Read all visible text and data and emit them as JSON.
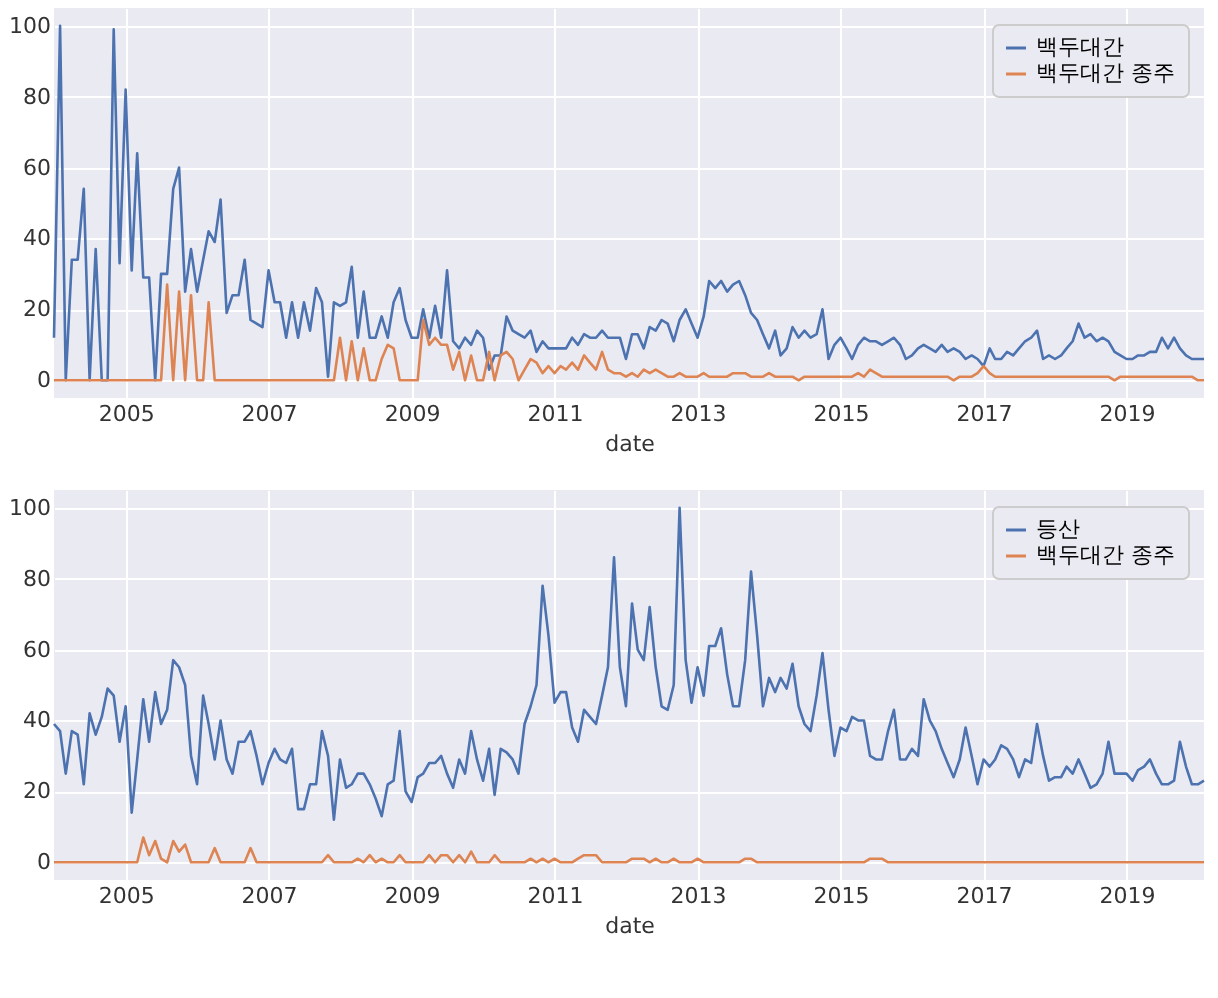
{
  "chart_data": [
    {
      "type": "line",
      "xlabel": "date",
      "legend": "top right",
      "grid": true,
      "xlim": [
        "2004-01",
        "2020-02"
      ],
      "ylim": [
        -5,
        105
      ],
      "xticks": [
        "2005",
        "2007",
        "2009",
        "2011",
        "2013",
        "2015",
        "2017",
        "2019"
      ],
      "yticks": [
        0,
        20,
        40,
        60,
        80,
        100
      ],
      "x": [
        "2004-01",
        "2004-02",
        "2004-03",
        "2004-04",
        "2004-05",
        "2004-06",
        "2004-07",
        "2004-08",
        "2004-09",
        "2004-10",
        "2004-11",
        "2004-12",
        "2005-01",
        "2005-02",
        "2005-03",
        "2005-04",
        "2005-05",
        "2005-06",
        "2005-07",
        "2005-08",
        "2005-09",
        "2005-10",
        "2005-11",
        "2005-12",
        "2006-01",
        "2006-02",
        "2006-03",
        "2006-04",
        "2006-05",
        "2006-06",
        "2006-07",
        "2006-08",
        "2006-09",
        "2006-10",
        "2006-11",
        "2006-12",
        "2007-01",
        "2007-02",
        "2007-03",
        "2007-04",
        "2007-05",
        "2007-06",
        "2007-07",
        "2007-08",
        "2007-09",
        "2007-10",
        "2007-11",
        "2007-12",
        "2008-01",
        "2008-02",
        "2008-03",
        "2008-04",
        "2008-05",
        "2008-06",
        "2008-07",
        "2008-08",
        "2008-09",
        "2008-10",
        "2008-11",
        "2008-12",
        "2009-01",
        "2009-02",
        "2009-03",
        "2009-04",
        "2009-05",
        "2009-06",
        "2009-07",
        "2009-08",
        "2009-09",
        "2009-10",
        "2009-11",
        "2009-12",
        "2010-01",
        "2010-02",
        "2010-03",
        "2010-04",
        "2010-05",
        "2010-06",
        "2010-07",
        "2010-08",
        "2010-09",
        "2010-10",
        "2010-11",
        "2010-12",
        "2011-01",
        "2011-02",
        "2011-03",
        "2011-04",
        "2011-05",
        "2011-06",
        "2011-07",
        "2011-08",
        "2011-09",
        "2011-10",
        "2011-11",
        "2011-12",
        "2012-01",
        "2012-02",
        "2012-03",
        "2012-04",
        "2012-05",
        "2012-06",
        "2012-07",
        "2012-08",
        "2012-09",
        "2012-10",
        "2012-11",
        "2012-12",
        "2013-01",
        "2013-02",
        "2013-03",
        "2013-04",
        "2013-05",
        "2013-06",
        "2013-07",
        "2013-08",
        "2013-09",
        "2013-10",
        "2013-11",
        "2013-12",
        "2014-01",
        "2014-02",
        "2014-03",
        "2014-04",
        "2014-05",
        "2014-06",
        "2014-07",
        "2014-08",
        "2014-09",
        "2014-10",
        "2014-11",
        "2014-12",
        "2015-01",
        "2015-02",
        "2015-03",
        "2015-04",
        "2015-05",
        "2015-06",
        "2015-07",
        "2015-08",
        "2015-09",
        "2015-10",
        "2015-11",
        "2015-12",
        "2016-01",
        "2016-02",
        "2016-03",
        "2016-04",
        "2016-05",
        "2016-06",
        "2016-07",
        "2016-08",
        "2016-09",
        "2016-10",
        "2016-11",
        "2016-12",
        "2017-01",
        "2017-02",
        "2017-03",
        "2017-04",
        "2017-05",
        "2017-06",
        "2017-07",
        "2017-08",
        "2017-09",
        "2017-10",
        "2017-11",
        "2017-12",
        "2018-01",
        "2018-02",
        "2018-03",
        "2018-04",
        "2018-05",
        "2018-06",
        "2018-07",
        "2018-08",
        "2018-09",
        "2018-10",
        "2018-11",
        "2018-12",
        "2019-01",
        "2019-02",
        "2019-03",
        "2019-04",
        "2019-05",
        "2019-06",
        "2019-07",
        "2019-08",
        "2019-09",
        "2019-10",
        "2019-11",
        "2019-12",
        "2020-01",
        "2020-02"
      ],
      "series": [
        {
          "name": "백두대간",
          "color": "#4c72b0",
          "values": [
            12,
            100,
            0,
            34,
            34,
            54,
            0,
            37,
            0,
            0,
            99,
            33,
            82,
            31,
            64,
            29,
            29,
            0,
            30,
            30,
            54,
            60,
            25,
            37,
            25,
            34,
            42,
            39,
            51,
            19,
            24,
            24,
            34,
            17,
            16,
            15,
            31,
            22,
            22,
            12,
            22,
            12,
            22,
            14,
            26,
            22,
            1,
            22,
            21,
            22,
            32,
            12,
            25,
            12,
            12,
            18,
            12,
            22,
            26,
            17,
            12,
            12,
            20,
            12,
            21,
            12,
            31,
            11,
            9,
            12,
            10,
            14,
            12,
            3,
            7,
            7,
            18,
            14,
            13,
            12,
            14,
            8,
            11,
            9,
            9,
            9,
            9,
            12,
            10,
            13,
            12,
            12,
            14,
            12,
            12,
            12,
            6,
            13,
            13,
            9,
            15,
            14,
            17,
            16,
            11,
            17,
            20,
            16,
            12,
            18,
            28,
            26,
            28,
            25,
            27,
            28,
            24,
            19,
            17,
            13,
            9,
            14,
            7,
            9,
            15,
            12,
            14,
            12,
            13,
            20,
            6,
            10,
            12,
            9,
            6,
            10,
            12,
            11,
            11,
            10,
            11,
            12,
            10,
            6,
            7,
            9,
            10,
            9,
            8,
            10,
            8,
            9,
            8,
            6,
            7,
            6,
            4,
            9,
            6,
            6,
            8,
            7,
            9,
            11,
            12,
            14,
            6,
            7,
            6,
            7,
            9,
            11,
            16,
            12,
            13,
            11,
            12,
            11,
            8,
            7,
            6,
            6,
            7,
            7,
            8,
            8,
            12,
            9,
            12,
            9,
            7,
            6,
            6,
            6
          ]
        },
        {
          "name": "백두대간 종주",
          "color": "#dd8452",
          "values": [
            0,
            0,
            0,
            0,
            0,
            0,
            0,
            0,
            0,
            0,
            0,
            0,
            0,
            0,
            0,
            0,
            0,
            0,
            0,
            27,
            0,
            25,
            0,
            24,
            0,
            0,
            22,
            0,
            0,
            0,
            0,
            0,
            0,
            0,
            0,
            0,
            0,
            0,
            0,
            0,
            0,
            0,
            0,
            0,
            0,
            0,
            0,
            0,
            12,
            0,
            11,
            0,
            9,
            0,
            0,
            6,
            10,
            9,
            0,
            0,
            0,
            0,
            17,
            10,
            12,
            10,
            10,
            3,
            8,
            0,
            7,
            0,
            0,
            8,
            0,
            7,
            8,
            6,
            0,
            3,
            6,
            5,
            2,
            4,
            2,
            4,
            3,
            5,
            3,
            7,
            5,
            3,
            8,
            3,
            2,
            2,
            1,
            2,
            1,
            3,
            2,
            3,
            2,
            1,
            1,
            2,
            1,
            1,
            1,
            2,
            1,
            1,
            1,
            1,
            2,
            2,
            2,
            1,
            1,
            1,
            2,
            1,
            1,
            1,
            1,
            0,
            1,
            1,
            1,
            1,
            1,
            1,
            1,
            1,
            1,
            2,
            1,
            3,
            2,
            1,
            1,
            1,
            1,
            1,
            1,
            1,
            1,
            1,
            1,
            1,
            1,
            0,
            1,
            1,
            1,
            2,
            4,
            2,
            1,
            1,
            1,
            1,
            1,
            1,
            1,
            1,
            1,
            1,
            1,
            1,
            1,
            1,
            1,
            1,
            1,
            1,
            1,
            1,
            0,
            1,
            1,
            1,
            1,
            1,
            1,
            1,
            1,
            1,
            1,
            1,
            1,
            1,
            0,
            0
          ]
        }
      ]
    },
    {
      "type": "line",
      "xlabel": "date",
      "legend": "top right",
      "grid": true,
      "xlim": [
        "2004-01",
        "2020-02"
      ],
      "ylim": [
        -5,
        105
      ],
      "xticks": [
        "2005",
        "2007",
        "2009",
        "2011",
        "2013",
        "2015",
        "2017",
        "2019"
      ],
      "yticks": [
        0,
        20,
        40,
        60,
        80,
        100
      ],
      "x": [
        "2004-01",
        "2004-02",
        "2004-03",
        "2004-04",
        "2004-05",
        "2004-06",
        "2004-07",
        "2004-08",
        "2004-09",
        "2004-10",
        "2004-11",
        "2004-12",
        "2005-01",
        "2005-02",
        "2005-03",
        "2005-04",
        "2005-05",
        "2005-06",
        "2005-07",
        "2005-08",
        "2005-09",
        "2005-10",
        "2005-11",
        "2005-12",
        "2006-01",
        "2006-02",
        "2006-03",
        "2006-04",
        "2006-05",
        "2006-06",
        "2006-07",
        "2006-08",
        "2006-09",
        "2006-10",
        "2006-11",
        "2006-12",
        "2007-01",
        "2007-02",
        "2007-03",
        "2007-04",
        "2007-05",
        "2007-06",
        "2007-07",
        "2007-08",
        "2007-09",
        "2007-10",
        "2007-11",
        "2007-12",
        "2008-01",
        "2008-02",
        "2008-03",
        "2008-04",
        "2008-05",
        "2008-06",
        "2008-07",
        "2008-08",
        "2008-09",
        "2008-10",
        "2008-11",
        "2008-12",
        "2009-01",
        "2009-02",
        "2009-03",
        "2009-04",
        "2009-05",
        "2009-06",
        "2009-07",
        "2009-08",
        "2009-09",
        "2009-10",
        "2009-11",
        "2009-12",
        "2010-01",
        "2010-02",
        "2010-03",
        "2010-04",
        "2010-05",
        "2010-06",
        "2010-07",
        "2010-08",
        "2010-09",
        "2010-10",
        "2010-11",
        "2010-12",
        "2011-01",
        "2011-02",
        "2011-03",
        "2011-04",
        "2011-05",
        "2011-06",
        "2011-07",
        "2011-08",
        "2011-09",
        "2011-10",
        "2011-11",
        "2011-12",
        "2012-01",
        "2012-02",
        "2012-03",
        "2012-04",
        "2012-05",
        "2012-06",
        "2012-07",
        "2012-08",
        "2012-09",
        "2012-10",
        "2012-11",
        "2012-12",
        "2013-01",
        "2013-02",
        "2013-03",
        "2013-04",
        "2013-05",
        "2013-06",
        "2013-07",
        "2013-08",
        "2013-09",
        "2013-10",
        "2013-11",
        "2013-12",
        "2014-01",
        "2014-02",
        "2014-03",
        "2014-04",
        "2014-05",
        "2014-06",
        "2014-07",
        "2014-08",
        "2014-09",
        "2014-10",
        "2014-11",
        "2014-12",
        "2015-01",
        "2015-02",
        "2015-03",
        "2015-04",
        "2015-05",
        "2015-06",
        "2015-07",
        "2015-08",
        "2015-09",
        "2015-10",
        "2015-11",
        "2015-12",
        "2016-01",
        "2016-02",
        "2016-03",
        "2016-04",
        "2016-05",
        "2016-06",
        "2016-07",
        "2016-08",
        "2016-09",
        "2016-10",
        "2016-11",
        "2016-12",
        "2017-01",
        "2017-02",
        "2017-03",
        "2017-04",
        "2017-05",
        "2017-06",
        "2017-07",
        "2017-08",
        "2017-09",
        "2017-10",
        "2017-11",
        "2017-12",
        "2018-01",
        "2018-02",
        "2018-03",
        "2018-04",
        "2018-05",
        "2018-06",
        "2018-07",
        "2018-08",
        "2018-09",
        "2018-10",
        "2018-11",
        "2018-12",
        "2019-01",
        "2019-02",
        "2019-03",
        "2019-04",
        "2019-05",
        "2019-06",
        "2019-07",
        "2019-08",
        "2019-09",
        "2019-10",
        "2019-11",
        "2019-12",
        "2020-01",
        "2020-02"
      ],
      "series": [
        {
          "name": "등산",
          "color": "#4c72b0",
          "values": [
            39,
            37,
            25,
            37,
            36,
            22,
            42,
            36,
            41,
            49,
            47,
            34,
            44,
            14,
            29,
            46,
            34,
            48,
            39,
            43,
            57,
            55,
            50,
            30,
            22,
            47,
            39,
            29,
            40,
            29,
            25,
            34,
            34,
            37,
            30,
            22,
            28,
            32,
            29,
            28,
            32,
            15,
            15,
            22,
            22,
            37,
            30,
            12,
            29,
            21,
            22,
            25,
            25,
            22,
            18,
            13,
            22,
            23,
            37,
            20,
            17,
            24,
            25,
            28,
            28,
            30,
            25,
            21,
            29,
            25,
            37,
            29,
            23,
            32,
            19,
            32,
            31,
            29,
            25,
            39,
            44,
            50,
            78,
            64,
            45,
            48,
            48,
            38,
            34,
            43,
            41,
            39,
            47,
            55,
            86,
            55,
            44,
            73,
            60,
            57,
            72,
            55,
            44,
            43,
            50,
            100,
            57,
            45,
            55,
            47,
            61,
            61,
            66,
            53,
            44,
            44,
            57,
            82,
            64,
            44,
            52,
            48,
            52,
            49,
            56,
            44,
            39,
            37,
            47,
            59,
            43,
            30,
            38,
            37,
            41,
            40,
            40,
            30,
            29,
            29,
            37,
            43,
            29,
            29,
            32,
            30,
            46,
            40,
            37,
            32,
            28,
            24,
            29,
            38,
            30,
            22,
            29,
            27,
            29,
            33,
            32,
            29,
            24,
            29,
            28,
            39,
            30,
            23,
            24,
            24,
            27,
            25,
            29,
            25,
            21,
            22,
            25,
            34,
            25,
            25,
            25,
            23,
            26,
            27,
            29,
            25,
            22,
            22,
            23,
            34,
            27,
            22,
            22,
            23
          ]
        },
        {
          "name": "백두대간 종주",
          "color": "#dd8452",
          "values": [
            0,
            0,
            0,
            0,
            0,
            0,
            0,
            0,
            0,
            0,
            0,
            0,
            0,
            0,
            0,
            7,
            2,
            6,
            1,
            0,
            6,
            3,
            5,
            0,
            0,
            0,
            0,
            4,
            0,
            0,
            0,
            0,
            0,
            4,
            0,
            0,
            0,
            0,
            0,
            0,
            0,
            0,
            0,
            0,
            0,
            0,
            2,
            0,
            0,
            0,
            0,
            1,
            0,
            2,
            0,
            1,
            0,
            0,
            2,
            0,
            0,
            0,
            0,
            2,
            0,
            2,
            2,
            0,
            2,
            0,
            3,
            0,
            0,
            0,
            2,
            0,
            0,
            0,
            0,
            0,
            1,
            0,
            1,
            0,
            1,
            0,
            0,
            0,
            1,
            2,
            2,
            2,
            0,
            0,
            0,
            0,
            0,
            1,
            1,
            1,
            0,
            1,
            0,
            0,
            1,
            0,
            0,
            0,
            1,
            0,
            0,
            0,
            0,
            0,
            0,
            0,
            1,
            1,
            0,
            0,
            0,
            0,
            0,
            0,
            0,
            0,
            0,
            0,
            0,
            0,
            0,
            0,
            0,
            0,
            0,
            0,
            0,
            1,
            1,
            1,
            0,
            0,
            0,
            0,
            0,
            0,
            0,
            0,
            0,
            0,
            0,
            0,
            0,
            0,
            0,
            0,
            0,
            0,
            0,
            0,
            0,
            0,
            0,
            0,
            0,
            0,
            0,
            0,
            0,
            0,
            0,
            0,
            0,
            0,
            0,
            0,
            0,
            0,
            0,
            0,
            0,
            0,
            0,
            0,
            0,
            0,
            0,
            0,
            0,
            0,
            0,
            0,
            0,
            0
          ]
        }
      ]
    }
  ]
}
